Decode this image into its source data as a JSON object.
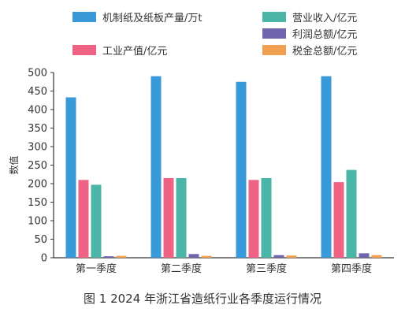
{
  "caption": "图 1   2024 年浙江省造纸行业各季度运行情况",
  "chart_data": {
    "type": "bar",
    "categories": [
      "第一季度",
      "第二季度",
      "第三季度",
      "第四季度"
    ],
    "series": [
      {
        "name": "机制纸及纸板产量/万t",
        "color": "#3a9ad9",
        "values": [
          433,
          490,
          475,
          490
        ]
      },
      {
        "name": "工业产值/亿元",
        "color": "#ee6283",
        "values": [
          210,
          215,
          210,
          204
        ]
      },
      {
        "name": "营业收入/亿元",
        "color": "#4bb5a8",
        "values": [
          197,
          215,
          215,
          237
        ]
      },
      {
        "name": "利润总额/亿元",
        "color": "#7064ae",
        "values": [
          4,
          10,
          7,
          12
        ]
      },
      {
        "name": "税金总额/亿元",
        "color": "#f0a050",
        "values": [
          5,
          5,
          6,
          7
        ]
      }
    ],
    "ylabel": "数值",
    "ylim": [
      0,
      500
    ],
    "yticks": [
      0,
      50,
      100,
      150,
      200,
      250,
      300,
      350,
      400,
      450,
      500
    ],
    "grid": false,
    "legend_position": "top"
  }
}
